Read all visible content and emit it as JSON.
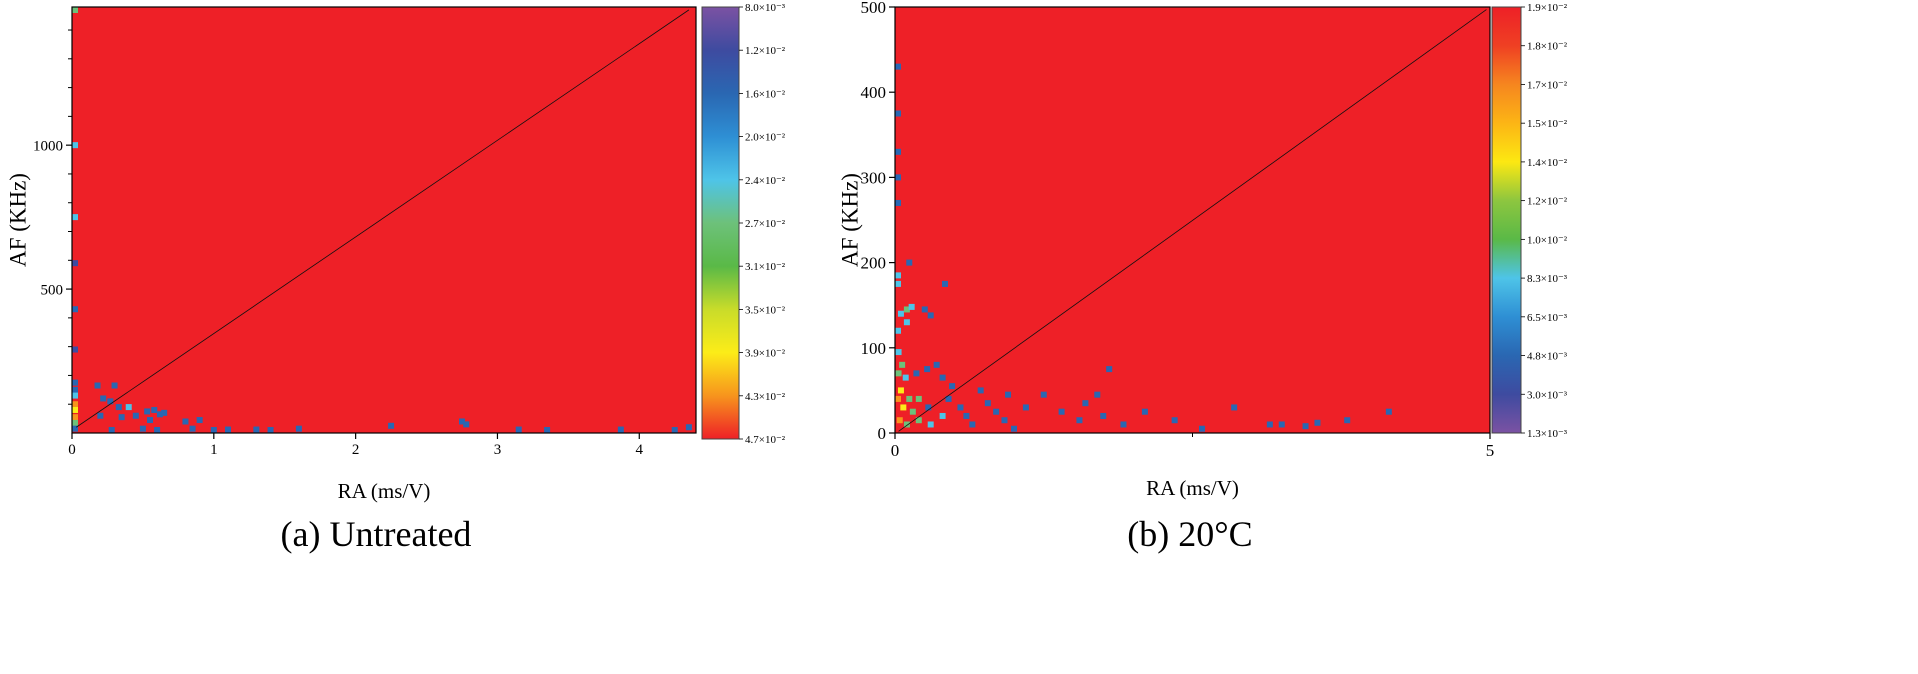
{
  "chart_data": [
    {
      "type": "heatmap",
      "caption": "(a) Untreated",
      "xlabel": "RA (ms/V)",
      "ylabel": "AF (KHz)",
      "xlim": [
        0,
        4.4
      ],
      "ylim": [
        0,
        1480
      ],
      "x_ticks": [
        0,
        1,
        2,
        3,
        4
      ],
      "x_tick_labels": [
        "0",
        "1",
        "2",
        "3",
        "4"
      ],
      "y_ticks": [
        500,
        1000
      ],
      "y_tick_labels": [
        "500",
        "1000"
      ],
      "y_minor_ticks": [
        100,
        200,
        300,
        400,
        600,
        700,
        800,
        900,
        1100,
        1200,
        1300,
        1400
      ],
      "background_color": "#ee2027",
      "diagonal_line": {
        "from": [
          0.03,
          20
        ],
        "to": [
          4.35,
          1470
        ]
      },
      "colorbar": {
        "labels": [
          "8.0×10⁻³",
          "1.2×10⁻²",
          "1.6×10⁻²",
          "2.0×10⁻²",
          "2.4×10⁻²",
          "2.7×10⁻²",
          "3.1×10⁻²",
          "3.5×10⁻²",
          "3.9×10⁻²",
          "4.3×10⁻²",
          "4.7×10⁻²"
        ],
        "colors": [
          "#7b52a3",
          "#3e4ba0",
          "#2a67b2",
          "#2e8fd4",
          "#4ec4e8",
          "#6dc17a",
          "#5ab947",
          "#c9dc2a",
          "#fcec18",
          "#f7941d",
          "#ee2027"
        ]
      },
      "points": [
        [
          0.02,
          1470,
          "#6dc17a"
        ],
        [
          0.01,
          1000,
          "#4ec4e8"
        ],
        [
          0.01,
          750,
          "#4ec4e8"
        ],
        [
          0.01,
          590,
          "#3e4ba0"
        ],
        [
          0.01,
          430,
          "#2a67b2"
        ],
        [
          0.01,
          290,
          "#3e4ba0"
        ],
        [
          0.01,
          175,
          "#2a67b2"
        ],
        [
          0.01,
          150,
          "#2a67b2"
        ],
        [
          0.01,
          130,
          "#4ec4e8"
        ],
        [
          0.01,
          100,
          "#f7941d"
        ],
        [
          0.01,
          80,
          "#fcec18"
        ],
        [
          0.01,
          55,
          "#f7941d"
        ],
        [
          0.01,
          35,
          "#6dc17a"
        ],
        [
          0.01,
          15,
          "#2a67b2"
        ],
        [
          0.18,
          165,
          "#2a67b2"
        ],
        [
          0.3,
          165,
          "#2a67b2"
        ],
        [
          0.22,
          120,
          "#2a67b2"
        ],
        [
          0.27,
          110,
          "#2a67b2"
        ],
        [
          0.33,
          90,
          "#2a67b2"
        ],
        [
          0.4,
          90,
          "#4ec4e8"
        ],
        [
          0.53,
          75,
          "#2a67b2"
        ],
        [
          0.58,
          80,
          "#2a67b2"
        ],
        [
          0.62,
          65,
          "#2a67b2"
        ],
        [
          0.65,
          70,
          "#2a67b2"
        ],
        [
          0.45,
          60,
          "#2a67b2"
        ],
        [
          0.35,
          55,
          "#2a67b2"
        ],
        [
          0.2,
          60,
          "#2a67b2"
        ],
        [
          0.55,
          45,
          "#2a67b2"
        ],
        [
          0.8,
          40,
          "#2a67b2"
        ],
        [
          0.9,
          45,
          "#2a67b2"
        ],
        [
          0.28,
          10,
          "#2a67b2"
        ],
        [
          0.5,
          15,
          "#2a67b2"
        ],
        [
          0.6,
          10,
          "#2a67b2"
        ],
        [
          0.85,
          15,
          "#2a67b2"
        ],
        [
          1.0,
          10,
          "#2a67b2"
        ],
        [
          1.1,
          12,
          "#2a67b2"
        ],
        [
          1.3,
          12,
          "#2a67b2"
        ],
        [
          1.4,
          8,
          "#2a67b2"
        ],
        [
          1.6,
          15,
          "#2a67b2"
        ],
        [
          2.25,
          25,
          "#2a67b2"
        ],
        [
          2.75,
          40,
          "#2a67b2"
        ],
        [
          2.78,
          30,
          "#2a67b2"
        ],
        [
          3.15,
          12,
          "#2a67b2"
        ],
        [
          3.35,
          8,
          "#2a67b2"
        ],
        [
          3.87,
          12,
          "#2a67b2"
        ],
        [
          4.25,
          8,
          "#2a67b2"
        ],
        [
          4.35,
          20,
          "#2a67b2"
        ]
      ]
    },
    {
      "type": "heatmap",
      "caption": "(b) 20°C",
      "xlabel": "RA (ms/V)",
      "ylabel": "AF (KHz)",
      "xlim": [
        0,
        5
      ],
      "ylim": [
        0,
        500
      ],
      "x_ticks": [
        0,
        5
      ],
      "x_tick_labels": [
        "0",
        "5"
      ],
      "x_minor_ticks": [
        2.5
      ],
      "y_ticks": [
        0,
        100,
        200,
        300,
        400,
        500
      ],
      "y_tick_labels": [
        "0",
        "100",
        "200",
        "300",
        "400",
        "500"
      ],
      "background_color": "#ee2027",
      "diagonal_line": {
        "from": [
          0.03,
          2
        ],
        "to": [
          4.97,
          497
        ]
      },
      "colorbar": {
        "labels": [
          "1.9×10⁻²",
          "1.8×10⁻²",
          "1.7×10⁻²",
          "1.5×10⁻²",
          "1.4×10⁻²",
          "1.2×10⁻²",
          "1.0×10⁻²",
          "8.3×10⁻³",
          "6.5×10⁻³",
          "4.8×10⁻³",
          "3.0×10⁻³",
          "1.3×10⁻³"
        ],
        "colors": [
          "#ee2027",
          "#ef4023",
          "#f6861f",
          "#fcb515",
          "#fce812",
          "#8dc63f",
          "#5ab947",
          "#4ec4e8",
          "#2e8fd4",
          "#2a67b2",
          "#3e4ba0",
          "#7b52a3"
        ]
      },
      "points": [
        [
          0.01,
          430,
          "#2a67b2"
        ],
        [
          0.01,
          375,
          "#2a67b2"
        ],
        [
          0.01,
          330,
          "#2a67b2"
        ],
        [
          0.01,
          300,
          "#2a67b2"
        ],
        [
          0.01,
          270,
          "#2a67b2"
        ],
        [
          0.02,
          185,
          "#4ec4e8"
        ],
        [
          0.02,
          175,
          "#4ec4e8"
        ],
        [
          0.12,
          200,
          "#2a67b2"
        ],
        [
          0.05,
          140,
          "#4ec4e8"
        ],
        [
          0.1,
          145,
          "#6dc17a"
        ],
        [
          0.14,
          148,
          "#4ec4e8"
        ],
        [
          0.25,
          145,
          "#2a67b2"
        ],
        [
          0.3,
          138,
          "#2a67b2"
        ],
        [
          0.42,
          175,
          "#2a67b2"
        ],
        [
          0.1,
          130,
          "#4ec4e8"
        ],
        [
          0.02,
          120,
          "#4ec4e8"
        ],
        [
          0.03,
          95,
          "#4ec4e8"
        ],
        [
          0.06,
          80,
          "#6dc17a"
        ],
        [
          0.03,
          70,
          "#6dc17a"
        ],
        [
          0.09,
          65,
          "#4ec4e8"
        ],
        [
          0.18,
          70,
          "#2a67b2"
        ],
        [
          0.27,
          75,
          "#2a67b2"
        ],
        [
          0.35,
          80,
          "#2a67b2"
        ],
        [
          0.4,
          65,
          "#2a67b2"
        ],
        [
          0.05,
          50,
          "#fcec18"
        ],
        [
          0.12,
          40,
          "#6dc17a"
        ],
        [
          0.2,
          40,
          "#6dc17a"
        ],
        [
          0.28,
          30,
          "#2a67b2"
        ],
        [
          0.02,
          40,
          "#f7941d"
        ],
        [
          0.07,
          30,
          "#fcec18"
        ],
        [
          0.15,
          25,
          "#6dc17a"
        ],
        [
          0.04,
          15,
          "#f7941d"
        ],
        [
          0.1,
          10,
          "#6dc17a"
        ],
        [
          0.2,
          15,
          "#6dc17a"
        ],
        [
          0.3,
          10,
          "#4ec4e8"
        ],
        [
          0.4,
          20,
          "#4ec4e8"
        ],
        [
          0.45,
          40,
          "#2a67b2"
        ],
        [
          0.48,
          55,
          "#2a67b2"
        ],
        [
          0.55,
          30,
          "#2a67b2"
        ],
        [
          0.6,
          20,
          "#2a67b2"
        ],
        [
          0.65,
          10,
          "#2a67b2"
        ],
        [
          0.72,
          50,
          "#2a67b2"
        ],
        [
          0.78,
          35,
          "#2a67b2"
        ],
        [
          0.85,
          25,
          "#2a67b2"
        ],
        [
          0.92,
          15,
          "#2a67b2"
        ],
        [
          0.95,
          45,
          "#2a67b2"
        ],
        [
          1.0,
          5,
          "#2a67b2"
        ],
        [
          1.1,
          30,
          "#2a67b2"
        ],
        [
          1.25,
          45,
          "#2a67b2"
        ],
        [
          1.4,
          25,
          "#2a67b2"
        ],
        [
          1.55,
          15,
          "#2a67b2"
        ],
        [
          1.6,
          35,
          "#2a67b2"
        ],
        [
          1.7,
          45,
          "#2a67b2"
        ],
        [
          1.75,
          20,
          "#2a67b2"
        ],
        [
          1.92,
          10,
          "#2a67b2"
        ],
        [
          2.1,
          25,
          "#2a67b2"
        ],
        [
          2.35,
          15,
          "#2a67b2"
        ],
        [
          2.58,
          5,
          "#2a67b2"
        ],
        [
          2.85,
          30,
          "#2a67b2"
        ],
        [
          3.15,
          10,
          "#2a67b2"
        ],
        [
          3.25,
          10,
          "#2a67b2"
        ],
        [
          3.45,
          8,
          "#2a67b2"
        ],
        [
          3.55,
          12,
          "#2a67b2"
        ],
        [
          3.8,
          15,
          "#2a67b2"
        ],
        [
          4.15,
          25,
          "#2a67b2"
        ],
        [
          1.8,
          75,
          "#2a67b2"
        ]
      ]
    }
  ]
}
